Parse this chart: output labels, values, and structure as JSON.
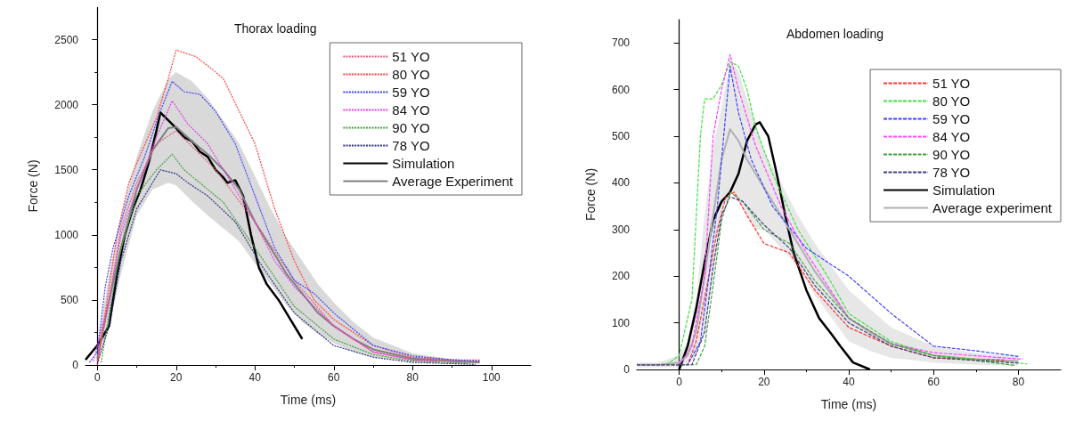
{
  "chart_data": [
    {
      "type": "line",
      "title": "Thorax loading",
      "xlabel": "Time (ms)",
      "ylabel": "Force (N)",
      "xlim": [
        -3,
        110
      ],
      "xticks": [
        0,
        20,
        40,
        60,
        80,
        100
      ],
      "ylim": [
        0,
        2750
      ],
      "yticks": [
        0,
        500,
        1000,
        1500,
        2000,
        2500
      ],
      "legend": "top right",
      "series": [
        {
          "name": "51 YO",
          "color": "#e0607a",
          "line_style": "dotted",
          "x": [
            0,
            3,
            6,
            10,
            15,
            20,
            25,
            30,
            40,
            50,
            60,
            70,
            80,
            92
          ],
          "values": [
            30,
            500,
            1050,
            1400,
            1700,
            1800,
            1650,
            1500,
            1100,
            650,
            300,
            100,
            40,
            25
          ]
        },
        {
          "name": "80 YO",
          "color": "#ff4040",
          "line_style": "dotted",
          "x": [
            0,
            2,
            5,
            8,
            10,
            15,
            18,
            20,
            22,
            25,
            28,
            32,
            40,
            45,
            50,
            55,
            60,
            70,
            80,
            90,
            97
          ],
          "values": [
            0,
            400,
            1000,
            1400,
            1550,
            1900,
            2200,
            2420,
            2400,
            2370,
            2300,
            2200,
            1700,
            1200,
            800,
            500,
            350,
            150,
            60,
            40,
            38
          ]
        },
        {
          "name": "59 YO",
          "color": "#4040ff",
          "line_style": "dotted",
          "x": [
            -2,
            0,
            2,
            4,
            8,
            12,
            16,
            19,
            22,
            26,
            30,
            35,
            40,
            45,
            50,
            55,
            60,
            70,
            80,
            90,
            97
          ],
          "values": [
            20,
            100,
            600,
            900,
            1300,
            1600,
            1950,
            2180,
            2100,
            2080,
            1950,
            1700,
            1300,
            900,
            650,
            550,
            400,
            150,
            70,
            40,
            30
          ]
        },
        {
          "name": "84 YO",
          "color": "#e040e0",
          "line_style": "dotted",
          "x": [
            -1,
            3,
            6,
            10,
            15,
            19,
            23,
            28,
            33,
            40,
            45,
            50,
            60,
            70,
            80,
            86
          ],
          "values": [
            30,
            500,
            1000,
            1350,
            1750,
            2030,
            1850,
            1700,
            1450,
            1100,
            800,
            600,
            300,
            100,
            40,
            30
          ]
        },
        {
          "name": "90 YO",
          "color": "#40a040",
          "line_style": "dotted",
          "x": [
            1,
            3,
            6,
            10,
            15,
            19,
            22,
            26,
            32,
            40,
            50,
            60,
            70,
            80,
            94
          ],
          "values": [
            20,
            400,
            900,
            1300,
            1500,
            1620,
            1500,
            1400,
            1250,
            900,
            450,
            200,
            80,
            30,
            12
          ]
        },
        {
          "name": "78 YO",
          "color": "#303080",
          "line_style": "dotted",
          "x": [
            0,
            3,
            6,
            10,
            16,
            20,
            23,
            28,
            35,
            42,
            50,
            60,
            70,
            80,
            96
          ],
          "values": [
            10,
            300,
            800,
            1200,
            1500,
            1470,
            1400,
            1300,
            1100,
            750,
            400,
            150,
            60,
            20,
            5
          ]
        },
        {
          "name": "Simulation",
          "color": "#000000",
          "line_style": "solid",
          "x": [
            -3,
            0,
            3,
            5,
            7,
            9,
            11,
            13,
            15,
            16,
            18,
            20,
            22,
            24,
            26,
            28,
            30,
            32,
            33,
            35,
            37,
            39,
            41,
            43,
            46,
            49,
            52
          ],
          "values": [
            40,
            150,
            300,
            700,
            1000,
            1200,
            1350,
            1550,
            1800,
            1940,
            1880,
            1820,
            1750,
            1720,
            1640,
            1600,
            1500,
            1440,
            1400,
            1420,
            1300,
            1000,
            750,
            620,
            500,
            350,
            200
          ]
        },
        {
          "name": "Average Experiment",
          "color": "#808080",
          "line_style": "solid",
          "x": [
            0,
            3,
            6,
            10,
            14,
            18,
            20,
            24,
            28,
            32,
            36,
            40,
            44,
            48,
            52,
            56,
            60,
            65,
            70,
            80,
            90,
            97
          ],
          "values": [
            50,
            500,
            900,
            1350,
            1650,
            1820,
            1830,
            1720,
            1620,
            1500,
            1350,
            1100,
            900,
            700,
            550,
            400,
            300,
            200,
            120,
            50,
            30,
            20
          ],
          "upper": [
            150,
            700,
            1150,
            1600,
            1950,
            2200,
            2250,
            2180,
            2050,
            1880,
            1700,
            1450,
            1200,
            980,
            800,
            620,
            480,
            330,
            210,
            90,
            45,
            30
          ],
          "lower": [
            10,
            300,
            700,
            1150,
            1350,
            1400,
            1380,
            1260,
            1150,
            1050,
            950,
            780,
            620,
            460,
            330,
            240,
            170,
            100,
            60,
            25,
            15,
            10
          ]
        }
      ]
    },
    {
      "type": "line",
      "title": "Abdomen loading",
      "xlabel": "Time (ms)",
      "ylabel": "Force (N)",
      "xlim": [
        -10,
        90
      ],
      "xticks": [
        0,
        20,
        40,
        60,
        80
      ],
      "ylim": [
        0,
        750
      ],
      "yticks": [
        0,
        100,
        200,
        300,
        400,
        500,
        600,
        700
      ],
      "legend": "top right",
      "series": [
        {
          "name": "51 YO",
          "color": "#ff3030",
          "line_style": "dashed",
          "x": [
            -10,
            2,
            4,
            7,
            9,
            11,
            13,
            16,
            20,
            26,
            32,
            40,
            50,
            60,
            77
          ],
          "values": [
            10,
            10,
            60,
            200,
            300,
            370,
            380,
            330,
            270,
            250,
            170,
            90,
            50,
            25,
            20
          ]
        },
        {
          "name": "80 YO",
          "color": "#40e040",
          "line_style": "dashed",
          "x": [
            -10,
            -3,
            0,
            3,
            5,
            6,
            8,
            10,
            12,
            14,
            16,
            18,
            22,
            28,
            35,
            40,
            50,
            60,
            82
          ],
          "values": [
            10,
            10,
            30,
            150,
            500,
            580,
            580,
            610,
            660,
            650,
            600,
            520,
            420,
            300,
            200,
            120,
            60,
            30,
            12
          ]
        },
        {
          "name": "59 YO",
          "color": "#4040ff",
          "line_style": "dashed",
          "x": [
            -10,
            2,
            5,
            7,
            9,
            11,
            12,
            14,
            17,
            22,
            30,
            40,
            50,
            60,
            70,
            80
          ],
          "values": [
            10,
            10,
            60,
            200,
            350,
            550,
            650,
            550,
            450,
            350,
            260,
            200,
            120,
            50,
            40,
            28
          ]
        },
        {
          "name": "84 YO",
          "color": "#ff40ff",
          "line_style": "dashed",
          "x": [
            -10,
            0,
            3,
            6,
            8,
            10,
            12,
            14,
            18,
            24,
            30,
            35,
            40,
            50,
            60,
            81
          ],
          "values": [
            10,
            10,
            50,
            200,
            500,
            600,
            675,
            600,
            480,
            350,
            250,
            180,
            110,
            55,
            36,
            22
          ]
        },
        {
          "name": "90 YO",
          "color": "#40a040",
          "line_style": "dashed",
          "x": [
            -10,
            4,
            6,
            8,
            10,
            12,
            15,
            20,
            26,
            32,
            40,
            50,
            60,
            79
          ],
          "values": [
            10,
            10,
            50,
            180,
            320,
            380,
            360,
            300,
            270,
            190,
            110,
            55,
            30,
            9
          ]
        },
        {
          "name": "78 YO",
          "color": "#404080",
          "line_style": "dashed",
          "x": [
            -10,
            3,
            6,
            8,
            10,
            12,
            15,
            20,
            26,
            32,
            40,
            50,
            60,
            80
          ],
          "values": [
            10,
            10,
            80,
            220,
            330,
            370,
            360,
            310,
            260,
            180,
            100,
            50,
            25,
            14
          ]
        },
        {
          "name": "Simulation",
          "color": "#000000",
          "line_style": "solid",
          "x": [
            0,
            2,
            4,
            6,
            8,
            10,
            12,
            14,
            16,
            18,
            19,
            21,
            23,
            25,
            27,
            30,
            33,
            36,
            38,
            41,
            45
          ],
          "values": [
            0,
            50,
            130,
            230,
            320,
            360,
            380,
            420,
            490,
            525,
            530,
            500,
            420,
            330,
            250,
            170,
            110,
            75,
            50,
            15,
            0
          ]
        },
        {
          "name": "Average experiment",
          "color": "#b0b0b0",
          "line_style": "solid",
          "x": [
            -10,
            -5,
            0,
            2,
            4,
            6,
            8,
            10,
            12,
            14,
            16,
            18,
            20,
            24,
            28,
            32,
            36,
            40,
            45,
            50,
            60,
            70,
            80
          ],
          "values": [
            10,
            10,
            15,
            30,
            80,
            200,
            330,
            450,
            515,
            490,
            450,
            420,
            390,
            330,
            270,
            210,
            160,
            110,
            80,
            55,
            30,
            22,
            18
          ],
          "upper": [
            15,
            15,
            30,
            60,
            150,
            330,
            480,
            560,
            660,
            640,
            580,
            530,
            470,
            400,
            330,
            270,
            220,
            170,
            130,
            90,
            50,
            35,
            28
          ],
          "lower": [
            5,
            5,
            5,
            10,
            30,
            80,
            200,
            340,
            380,
            360,
            330,
            300,
            300,
            260,
            220,
            160,
            110,
            60,
            40,
            25,
            15,
            10,
            8
          ]
        }
      ]
    }
  ]
}
